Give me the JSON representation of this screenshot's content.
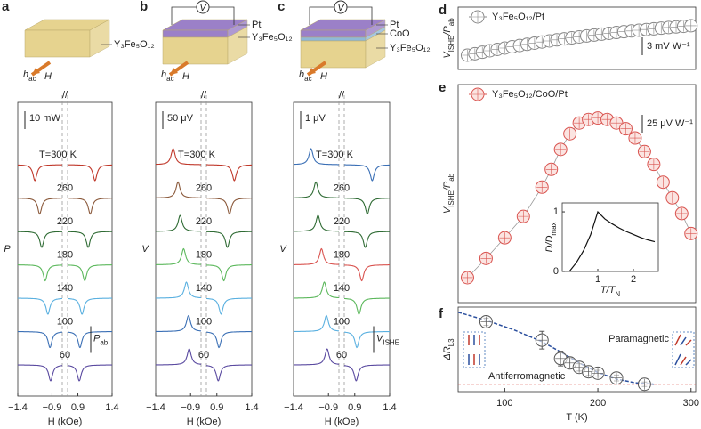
{
  "chart_data": [
    {
      "type": "spectra",
      "panel": "a",
      "schematic": [
        "Y₃Fe₅O₁₂"
      ],
      "field_labels": [
        "h",
        "ac",
        "H"
      ],
      "scale_bar": "10 mW",
      "ylabel": "P",
      "xlabel": "H (kOe)",
      "xlim": [
        -1.4,
        1.4
      ],
      "break": [
        -0.75,
        0.75
      ],
      "xticks": [
        {
          "value": -1.4,
          "label": "−1.4"
        },
        {
          "value": -0.9,
          "label": "−0.9"
        },
        0.9,
        1.4
      ],
      "sign": [
        -1,
        -1
      ],
      "annotation": [
        "P",
        "ab"
      ],
      "series": [
        {
          "name": "T=300 K",
          "color": "#c0392b",
          "resonance": 1.15
        },
        {
          "name": "260",
          "color": "#8b5a3c",
          "resonance": 1.08
        },
        {
          "name": "220",
          "color": "#2f6b34",
          "resonance": 1.05
        },
        {
          "name": "180",
          "color": "#5cb85c",
          "resonance": 1.0
        },
        {
          "name": "140",
          "color": "#5ab0e0",
          "resonance": 0.96
        },
        {
          "name": "100",
          "color": "#3a6fb5",
          "resonance": 0.93
        },
        {
          "name": "60",
          "color": "#5a4aa0",
          "resonance": 0.92
        }
      ]
    },
    {
      "type": "spectra",
      "panel": "b",
      "schematic": [
        "Pt",
        "Y₃Fe₅O₁₂"
      ],
      "voltmeter": "V",
      "field_labels": [
        "h",
        "ac",
        "H"
      ],
      "scale_bar": "50 μV",
      "ylabel": "V",
      "xlabel": "H (kOe)",
      "xlim": [
        -1.4,
        1.4
      ],
      "break": [
        -0.75,
        0.75
      ],
      "xticks": [
        {
          "value": -1.4,
          "label": "−1.4"
        },
        {
          "value": -0.9,
          "label": "−0.9"
        },
        0.9,
        1.4
      ],
      "sign": [
        1,
        -1
      ],
      "series": [
        {
          "name": "T=300 K",
          "color": "#c0392b",
          "resonance": 1.15
        },
        {
          "name": "260",
          "color": "#8b5a3c",
          "resonance": 1.08
        },
        {
          "name": "220",
          "color": "#2f6b34",
          "resonance": 1.05
        },
        {
          "name": "180",
          "color": "#5cb85c",
          "resonance": 1.0
        },
        {
          "name": "140",
          "color": "#5ab0e0",
          "resonance": 0.96
        },
        {
          "name": "100",
          "color": "#3a6fb5",
          "resonance": 0.93
        },
        {
          "name": "60",
          "color": "#5a4aa0",
          "resonance": 0.92
        }
      ]
    },
    {
      "type": "spectra",
      "panel": "c",
      "schematic": [
        "Pt",
        "CoO",
        "Y₃Fe₅O₁₂"
      ],
      "voltmeter": "V",
      "field_labels": [
        "h",
        "ac",
        "H"
      ],
      "scale_bar": "1 μV",
      "ylabel": "V",
      "xlabel": "H (kOe)",
      "xlim": [
        -1.4,
        1.4
      ],
      "break": [
        -0.75,
        0.75
      ],
      "xticks": [
        {
          "value": -1.4,
          "label": "−1.4"
        },
        {
          "value": -0.9,
          "label": "−0.9"
        },
        0.9,
        1.4
      ],
      "sign": [
        1,
        -1
      ],
      "annotation": [
        "V",
        "ISHE"
      ],
      "series": [
        {
          "name": "T=300 K",
          "color": "#3a6fb5",
          "resonance": 1.15
        },
        {
          "name": "260",
          "color": "#2f6b34",
          "resonance": 1.08
        },
        {
          "name": "220",
          "color": "#2f6b34",
          "resonance": 1.05
        },
        {
          "name": "180",
          "color": "#d9534f",
          "resonance": 1.0
        },
        {
          "name": "140",
          "color": "#5cb85c",
          "resonance": 0.96
        },
        {
          "name": "100",
          "color": "#5ab0e0",
          "resonance": 0.93
        },
        {
          "name": "60",
          "color": "#5a4aa0",
          "resonance": 0.92
        }
      ]
    },
    {
      "type": "scatter",
      "panel": "d",
      "ylabel": [
        "V",
        "ISHE",
        "/P",
        "ab"
      ],
      "legend": "Y₃Fe₅O₁₂/Pt",
      "scale_bar": "3 mV W⁻¹",
      "scale_value": 3,
      "color": "#888888",
      "xlim": [
        50,
        305
      ],
      "ylim": [
        0,
        10.5
      ],
      "x": [
        60,
        68,
        76,
        84,
        92,
        100,
        108,
        116,
        124,
        132,
        140,
        148,
        156,
        164,
        172,
        180,
        188,
        196,
        204,
        212,
        220,
        228,
        236,
        244,
        252,
        260,
        268,
        276,
        284,
        292,
        300
      ],
      "values": [
        2.4,
        2.65,
        2.9,
        3.15,
        3.38,
        3.6,
        3.82,
        4.03,
        4.23,
        4.43,
        4.62,
        4.8,
        4.98,
        5.15,
        5.32,
        5.48,
        5.64,
        5.79,
        5.94,
        6.08,
        6.22,
        6.35,
        6.48,
        6.6,
        6.72,
        6.84,
        6.95,
        7.06,
        7.16,
        7.26,
        7.36
      ]
    },
    {
      "type": "scatter",
      "panel": "e",
      "ylabel": [
        "V",
        "ISHE",
        "/P",
        "ab"
      ],
      "legend": "Y₃Fe₅O₁₂/CoO/Pt",
      "scale_bar": "25 μV W⁻¹",
      "scale_value": 25,
      "color": "#d9534f",
      "xlim": [
        50,
        305
      ],
      "ylim": [
        0,
        306
      ],
      "x": [
        60,
        80,
        100,
        120,
        140,
        150,
        160,
        170,
        180,
        190,
        200,
        210,
        220,
        230,
        240,
        250,
        260,
        270,
        280,
        290,
        300
      ],
      "values": [
        35,
        62,
        91,
        121,
        162,
        187,
        215,
        237,
        252,
        257,
        259,
        257,
        252,
        244,
        231,
        212,
        194,
        169,
        147,
        125,
        97
      ],
      "inset": {
        "ylabel": [
          "D/D",
          "max"
        ],
        "xlabel": [
          "T/T",
          "N"
        ],
        "xlim": [
          0,
          2.7
        ],
        "ylim": [
          0,
          1.15
        ],
        "xticks": [
          1,
          2
        ],
        "yticks": [
          0,
          1
        ],
        "x": [
          0.2,
          0.4,
          0.6,
          0.8,
          1.0,
          1.2,
          1.4,
          1.6,
          1.8,
          2.0,
          2.2,
          2.4,
          2.6
        ],
        "values": [
          0,
          0.15,
          0.35,
          0.62,
          1.0,
          0.88,
          0.8,
          0.73,
          0.67,
          0.62,
          0.57,
          0.53,
          0.5
        ]
      }
    },
    {
      "type": "errorbar",
      "panel": "f",
      "ylabel": [
        "ΔR",
        "L3"
      ],
      "xlabel": "T (K)",
      "xlim": [
        50,
        305
      ],
      "ylim": [
        -0.1,
        1.05
      ],
      "xticks": [
        100,
        200,
        300
      ],
      "color": "#555555",
      "baseline": 0,
      "x": [
        80,
        140,
        160,
        170,
        180,
        190,
        200,
        220,
        250
      ],
      "values": [
        0.85,
        0.6,
        0.35,
        0.29,
        0.23,
        0.17,
        0.15,
        0.085,
        0
      ],
      "errors": [
        0.05,
        0.12,
        0.1,
        0.07,
        0.05,
        0.05,
        0.04,
        0.04,
        0.03
      ],
      "fit": {
        "x": [
          50,
          80,
          110,
          140,
          160,
          180,
          200,
          220,
          240,
          260
        ],
        "values": [
          0.98,
          0.87,
          0.74,
          0.58,
          0.44,
          0.29,
          0.16,
          0.07,
          0.02,
          0
        ]
      },
      "annotations": [
        "Paramagnetic",
        "Antiferromagnetic"
      ]
    }
  ]
}
